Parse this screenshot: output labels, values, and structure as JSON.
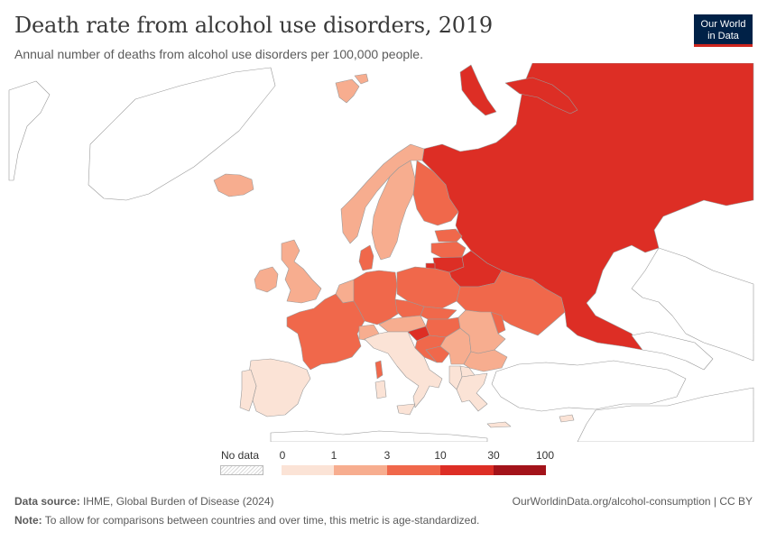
{
  "header": {
    "title": "Death rate from alcohol use disorders, 2019",
    "subtitle": "Annual number of deaths from alcohol use disorders per 100,000 people."
  },
  "logo": {
    "line1": "Our World",
    "line2": "in Data"
  },
  "legend": {
    "no_data_label": "No data",
    "ticks": [
      "0",
      "1",
      "3",
      "10",
      "30",
      "100"
    ],
    "colors": [
      "#fbe3d6",
      "#f7ad8f",
      "#f0684b",
      "#dd2e25",
      "#a3131a"
    ]
  },
  "colors": {
    "no_data": "#ffffff",
    "border": "#9a9a9a",
    "ocean": "#ffffff"
  },
  "footer": {
    "source_label": "Data source:",
    "source_text": "IHME, Global Burden of Disease (2024)",
    "url": "OurWorldinData.org/alcohol-consumption | CC BY",
    "note_label": "Note:",
    "note_text": "To allow for comparisons between countries and over time, this metric is age-standardized."
  },
  "regions": [
    {
      "name": "Russia",
      "bin": 3
    },
    {
      "name": "Belarus",
      "bin": 3
    },
    {
      "name": "Lithuania",
      "bin": 3
    },
    {
      "name": "Latvia",
      "bin": 2
    },
    {
      "name": "Estonia",
      "bin": 2
    },
    {
      "name": "Finland",
      "bin": 2
    },
    {
      "name": "Sweden",
      "bin": 1
    },
    {
      "name": "Norway",
      "bin": 1
    },
    {
      "name": "Denmark",
      "bin": 2
    },
    {
      "name": "Iceland",
      "bin": 1
    },
    {
      "name": "United Kingdom",
      "bin": 1
    },
    {
      "name": "Ireland",
      "bin": 1
    },
    {
      "name": "France",
      "bin": 2
    },
    {
      "name": "Germany",
      "bin": 2
    },
    {
      "name": "Poland",
      "bin": 2
    },
    {
      "name": "Ukraine",
      "bin": 2
    },
    {
      "name": "Czechia",
      "bin": 2
    },
    {
      "name": "Austria",
      "bin": 1
    },
    {
      "name": "Hungary",
      "bin": 2
    },
    {
      "name": "Romania",
      "bin": 1
    },
    {
      "name": "Moldova",
      "bin": 2
    },
    {
      "name": "Slovenia",
      "bin": 2
    },
    {
      "name": "Croatia",
      "bin": 2
    },
    {
      "name": "Serbia",
      "bin": 1
    },
    {
      "name": "Bulgaria",
      "bin": 1
    },
    {
      "name": "Switzerland",
      "bin": 1
    },
    {
      "name": "Netherlands",
      "bin": 1
    },
    {
      "name": "Spain",
      "bin": 0
    },
    {
      "name": "Portugal",
      "bin": 0
    },
    {
      "name": "Italy",
      "bin": 0
    },
    {
      "name": "Greece",
      "bin": 0
    },
    {
      "name": "Turkey",
      "bin": -1
    },
    {
      "name": "Svalbard",
      "bin": 1
    },
    {
      "name": "Corsica",
      "bin": 2
    },
    {
      "name": "Cyprus",
      "bin": 0
    }
  ]
}
